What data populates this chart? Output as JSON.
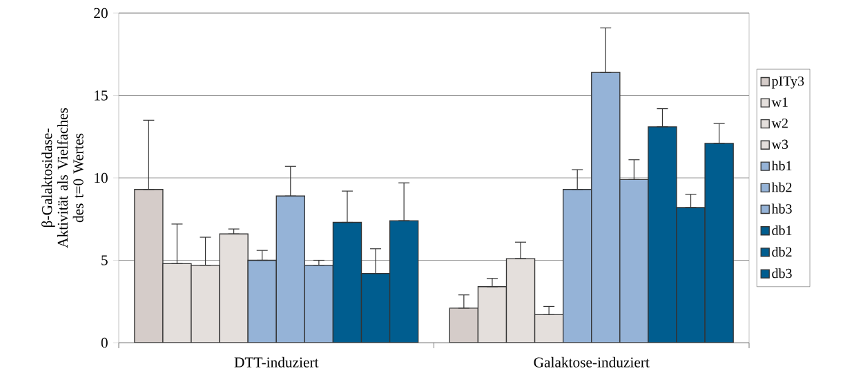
{
  "chart_data": {
    "type": "bar",
    "ylabel": "β-Galaktosidase-Aktivität als Vielfaches des t=0 Wertes",
    "categories": [
      "DTT-induziert",
      "Galaktose-induziert"
    ],
    "series": [
      {
        "name": "pITy3",
        "color": "#d5ccc9",
        "values": [
          9.3,
          2.1
        ],
        "errors": [
          [
            9.3,
            13.5
          ],
          [
            2.1,
            2.9
          ]
        ]
      },
      {
        "name": "w1",
        "color": "#e4dfdc",
        "values": [
          4.8,
          3.4
        ],
        "errors": [
          [
            4.8,
            7.2
          ],
          [
            3.4,
            3.9
          ]
        ]
      },
      {
        "name": "w2",
        "color": "#e4dfdc",
        "values": [
          4.7,
          5.1
        ],
        "errors": [
          [
            4.7,
            6.4
          ],
          [
            5.1,
            6.1
          ]
        ]
      },
      {
        "name": "w3",
        "color": "#e4dfdc",
        "values": [
          6.6,
          1.7
        ],
        "errors": [
          [
            6.6,
            6.9
          ],
          [
            1.7,
            2.2
          ]
        ]
      },
      {
        "name": "hb1",
        "color": "#95b3d7",
        "values": [
          5.0,
          9.3
        ],
        "errors": [
          [
            5.0,
            5.6
          ],
          [
            9.3,
            10.5
          ]
        ]
      },
      {
        "name": "hb2",
        "color": "#95b3d7",
        "values": [
          8.9,
          16.4
        ],
        "errors": [
          [
            8.9,
            10.7
          ],
          [
            16.4,
            19.1
          ]
        ]
      },
      {
        "name": "hb3",
        "color": "#95b3d7",
        "values": [
          4.7,
          9.9
        ],
        "errors": [
          [
            4.7,
            5.0
          ],
          [
            9.9,
            11.1
          ]
        ]
      },
      {
        "name": "db1",
        "color": "#005d8f",
        "values": [
          7.3,
          13.1
        ],
        "errors": [
          [
            7.3,
            9.2
          ],
          [
            13.1,
            14.2
          ]
        ]
      },
      {
        "name": "db2",
        "color": "#005d8f",
        "values": [
          4.2,
          8.2
        ],
        "errors": [
          [
            4.2,
            5.7
          ],
          [
            8.2,
            9.0
          ]
        ]
      },
      {
        "name": "db3",
        "color": "#005d8f",
        "values": [
          7.4,
          12.1
        ],
        "errors": [
          [
            7.4,
            9.7
          ],
          [
            12.1,
            13.3
          ]
        ]
      }
    ],
    "ylim": [
      0,
      20
    ],
    "yticks": [
      0,
      5,
      10,
      15,
      20
    ],
    "grid": "y",
    "legend": "right"
  }
}
